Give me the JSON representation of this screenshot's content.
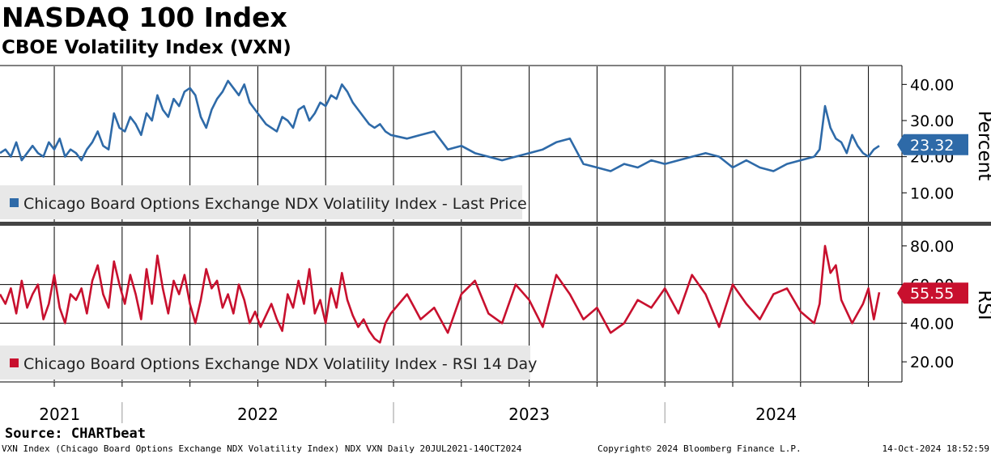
{
  "title": "NASDAQ 100 Index",
  "subtitle": "CBOE Volatility Index (VXN)",
  "source": "Source: CHARTbeat",
  "footer": {
    "left": "VXN Index (Chicago Board Options Exchange NDX Volatility Index) NDX VXN  Daily 20JUL2021-14OCT2024",
    "middle": "Copyright© 2024 Bloomberg Finance L.P.",
    "right": "14-Oct-2024 18:52:59"
  },
  "colors": {
    "price_line": "#2e6aa8",
    "rsi_line": "#c8102e",
    "price_badge": "#2e6aa8",
    "rsi_badge": "#c8102e"
  },
  "chart_data": [
    {
      "type": "line",
      "name": "price-panel",
      "ylabel": "Percent",
      "ylim": [
        2,
        45
      ],
      "yticks": [
        "10.00",
        "20.00",
        "30.00",
        "40.00"
      ],
      "ytick_values": [
        10,
        20,
        30,
        40
      ],
      "xlim": [
        2021.55,
        2024.79
      ],
      "legend": "Chicago Board Options Exchange NDX Volatility Index - Last Price",
      "last_value_label": "23.32",
      "last_value": 23.32,
      "series": [
        {
          "name": "Chicago Board Options Exchange NDX Volatility Index - Last Price",
          "x": [
            2021.55,
            2021.57,
            2021.59,
            2021.61,
            2021.63,
            2021.65,
            2021.67,
            2021.69,
            2021.71,
            2021.73,
            2021.75,
            2021.77,
            2021.79,
            2021.81,
            2021.83,
            2021.85,
            2021.87,
            2021.89,
            2021.91,
            2021.93,
            2021.95,
            2021.97,
            2021.99,
            2022.01,
            2022.03,
            2022.05,
            2022.07,
            2022.09,
            2022.11,
            2022.13,
            2022.15,
            2022.17,
            2022.19,
            2022.21,
            2022.23,
            2022.25,
            2022.27,
            2022.29,
            2022.31,
            2022.33,
            2022.35,
            2022.37,
            2022.39,
            2022.41,
            2022.43,
            2022.45,
            2022.47,
            2022.49,
            2022.51,
            2022.53,
            2022.55,
            2022.57,
            2022.59,
            2022.61,
            2022.63,
            2022.65,
            2022.67,
            2022.69,
            2022.71,
            2022.73,
            2022.75,
            2022.77,
            2022.79,
            2022.81,
            2022.83,
            2022.85,
            2022.87,
            2022.89,
            2022.91,
            2022.93,
            2022.95,
            2022.97,
            2022.99,
            2023.05,
            2023.1,
            2023.15,
            2023.2,
            2023.25,
            2023.3,
            2023.35,
            2023.4,
            2023.45,
            2023.5,
            2023.55,
            2023.6,
            2023.65,
            2023.7,
            2023.75,
            2023.8,
            2023.85,
            2023.9,
            2023.95,
            2024.0,
            2024.05,
            2024.1,
            2024.15,
            2024.2,
            2024.25,
            2024.3,
            2024.35,
            2024.4,
            2024.45,
            2024.5,
            2024.55,
            2024.57,
            2024.59,
            2024.61,
            2024.63,
            2024.65,
            2024.67,
            2024.69,
            2024.71,
            2024.73,
            2024.75,
            2024.77,
            2024.79
          ],
          "y": [
            21,
            22,
            20,
            24,
            19,
            21,
            23,
            21,
            20,
            24,
            22,
            25,
            20,
            22,
            21,
            19,
            22,
            24,
            27,
            23,
            22,
            32,
            28,
            27,
            31,
            29,
            26,
            32,
            30,
            37,
            33,
            31,
            36,
            34,
            38,
            39,
            37,
            31,
            28,
            33,
            36,
            38,
            41,
            39,
            37,
            40,
            35,
            33,
            31,
            29,
            28,
            27,
            31,
            30,
            28,
            33,
            34,
            30,
            32,
            35,
            34,
            37,
            36,
            40,
            38,
            35,
            33,
            31,
            29,
            28,
            29,
            27,
            26,
            25,
            26,
            27,
            22,
            23,
            21,
            20,
            19,
            20,
            21,
            22,
            24,
            25,
            18,
            17,
            16,
            18,
            17,
            19,
            18,
            19,
            20,
            21,
            20,
            17,
            19,
            17,
            16,
            18,
            19,
            20,
            22,
            34,
            28,
            25,
            24,
            21,
            26,
            23,
            21,
            20,
            22,
            23
          ]
        }
      ]
    },
    {
      "type": "line",
      "name": "rsi-panel",
      "ylabel": "RSI",
      "ylim": [
        10,
        90
      ],
      "yticks": [
        "20.00",
        "40.00",
        "60.00",
        "80.00"
      ],
      "ytick_values": [
        20,
        40,
        60,
        80
      ],
      "reference_lines": [
        40,
        60
      ],
      "xlim": [
        2021.55,
        2024.79
      ],
      "legend": "Chicago Board Options Exchange NDX Volatility Index - RSI 14 Day",
      "last_value_label": "55.55",
      "last_value": 55.55,
      "series": [
        {
          "name": "Chicago Board Options Exchange NDX Volatility Index - RSI 14 Day",
          "x": [
            2021.55,
            2021.57,
            2021.59,
            2021.61,
            2021.63,
            2021.65,
            2021.67,
            2021.69,
            2021.71,
            2021.73,
            2021.75,
            2021.77,
            2021.79,
            2021.81,
            2021.83,
            2021.85,
            2021.87,
            2021.89,
            2021.91,
            2021.93,
            2021.95,
            2021.97,
            2021.99,
            2022.01,
            2022.03,
            2022.05,
            2022.07,
            2022.09,
            2022.11,
            2022.13,
            2022.15,
            2022.17,
            2022.19,
            2022.21,
            2022.23,
            2022.25,
            2022.27,
            2022.29,
            2022.31,
            2022.33,
            2022.35,
            2022.37,
            2022.39,
            2022.41,
            2022.43,
            2022.45,
            2022.47,
            2022.49,
            2022.51,
            2022.53,
            2022.55,
            2022.57,
            2022.59,
            2022.61,
            2022.63,
            2022.65,
            2022.67,
            2022.69,
            2022.71,
            2022.73,
            2022.75,
            2022.77,
            2022.79,
            2022.81,
            2022.83,
            2022.85,
            2022.87,
            2022.89,
            2022.91,
            2022.93,
            2022.95,
            2022.97,
            2022.99,
            2023.05,
            2023.1,
            2023.15,
            2023.2,
            2023.25,
            2023.3,
            2023.35,
            2023.4,
            2023.45,
            2023.5,
            2023.55,
            2023.6,
            2023.65,
            2023.7,
            2023.75,
            2023.8,
            2023.85,
            2023.9,
            2023.95,
            2024.0,
            2024.05,
            2024.1,
            2024.15,
            2024.2,
            2024.25,
            2024.3,
            2024.35,
            2024.4,
            2024.45,
            2024.5,
            2024.55,
            2024.57,
            2024.59,
            2024.61,
            2024.63,
            2024.65,
            2024.67,
            2024.69,
            2024.71,
            2024.73,
            2024.75,
            2024.77,
            2024.79
          ],
          "y": [
            55,
            50,
            58,
            45,
            62,
            48,
            55,
            60,
            42,
            50,
            65,
            48,
            40,
            55,
            52,
            58,
            45,
            62,
            70,
            55,
            48,
            72,
            60,
            50,
            65,
            55,
            42,
            68,
            50,
            75,
            58,
            45,
            62,
            55,
            65,
            50,
            40,
            52,
            68,
            58,
            62,
            48,
            55,
            45,
            60,
            52,
            40,
            46,
            38,
            44,
            50,
            42,
            36,
            55,
            48,
            62,
            50,
            68,
            45,
            52,
            40,
            58,
            48,
            66,
            52,
            44,
            38,
            42,
            36,
            32,
            30,
            40,
            45,
            55,
            42,
            48,
            35,
            55,
            62,
            45,
            40,
            60,
            52,
            38,
            65,
            55,
            42,
            48,
            35,
            40,
            52,
            48,
            58,
            45,
            65,
            55,
            38,
            60,
            50,
            42,
            55,
            58,
            46,
            40,
            50,
            80,
            66,
            70,
            52,
            46,
            40,
            45,
            50,
            58,
            42,
            56
          ]
        }
      ]
    },
    {
      "type": "axis",
      "name": "x-axis",
      "xlim": [
        2021.55,
        2024.79
      ],
      "year_labels": [
        "2021",
        "2022",
        "2023",
        "2024"
      ],
      "year_label_positions": [
        2021.77,
        2022.5,
        2023.5,
        2024.41
      ],
      "year_boundaries": [
        2022.0,
        2023.0,
        2024.0
      ],
      "quarter_ticks": [
        2021.75,
        2022.0,
        2022.25,
        2022.5,
        2022.75,
        2023.0,
        2023.25,
        2023.5,
        2023.75,
        2024.0,
        2024.25,
        2024.5,
        2024.75
      ]
    }
  ]
}
